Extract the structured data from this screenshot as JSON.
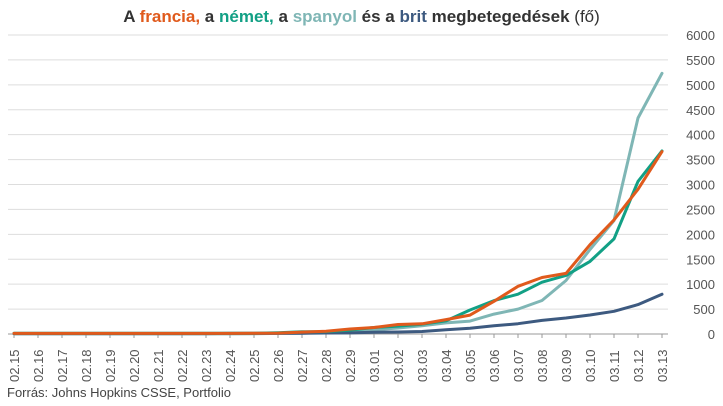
{
  "title": {
    "parts": [
      {
        "text": "A ",
        "color": "#333333",
        "bold": true
      },
      {
        "text": "francia,",
        "color": "#e05a1c",
        "bold": true
      },
      {
        "text": " a ",
        "color": "#333333",
        "bold": true
      },
      {
        "text": "német,",
        "color": "#12a085",
        "bold": true
      },
      {
        "text": " a ",
        "color": "#333333",
        "bold": true
      },
      {
        "text": "spanyol",
        "color": "#7fb6b5",
        "bold": true
      },
      {
        "text": " és a ",
        "color": "#333333",
        "bold": true
      },
      {
        "text": "brit",
        "color": "#3d5a80",
        "bold": true
      },
      {
        "text": " megbetegedések ",
        "color": "#333333",
        "bold": true
      },
      {
        "text": "(fő)",
        "color": "#333333",
        "bold": false
      }
    ]
  },
  "source": "Forrás: Johns Hopkins CSSE, Portfolio",
  "chart_data": {
    "type": "line",
    "grid": true,
    "y_axis_position": "right",
    "ylim": [
      0,
      6000
    ],
    "yticks": [
      0,
      500,
      1000,
      1500,
      2000,
      2500,
      3000,
      3500,
      4000,
      4500,
      5000,
      5500,
      6000
    ],
    "categories": [
      "02.15",
      "02.16",
      "02.17",
      "02.18",
      "02.19",
      "02.20",
      "02.21",
      "02.22",
      "02.23",
      "02.24",
      "02.25",
      "02.26",
      "02.27",
      "02.28",
      "02.29",
      "03.01",
      "03.02",
      "03.03",
      "03.04",
      "03.05",
      "03.06",
      "03.07",
      "03.08",
      "03.09",
      "03.10",
      "03.11",
      "03.12",
      "03.13"
    ],
    "series": [
      {
        "name": "spanyol",
        "color": "#7fb6b5",
        "values": [
          2,
          2,
          2,
          2,
          2,
          2,
          2,
          2,
          2,
          2,
          6,
          13,
          15,
          32,
          45,
          84,
          120,
          165,
          222,
          259,
          400,
          500,
          673,
          1073,
          1695,
          2277,
          4335,
          5232
        ]
      },
      {
        "name": "brit",
        "color": "#3d5a80",
        "values": [
          9,
          9,
          9,
          9,
          9,
          9,
          9,
          9,
          9,
          13,
          13,
          13,
          15,
          20,
          23,
          36,
          40,
          51,
          86,
          116,
          164,
          207,
          273,
          321,
          382,
          456,
          590,
          798
        ]
      },
      {
        "name": "német",
        "color": "#12a085",
        "values": [
          16,
          16,
          16,
          16,
          16,
          16,
          16,
          16,
          16,
          16,
          17,
          27,
          46,
          48,
          79,
          130,
          159,
          196,
          262,
          482,
          670,
          799,
          1040,
          1176,
          1457,
          1908,
          3062,
          3675
        ]
      },
      {
        "name": "francia",
        "color": "#e05a1c",
        "values": [
          12,
          12,
          12,
          12,
          12,
          12,
          12,
          12,
          12,
          12,
          14,
          18,
          38,
          57,
          100,
          130,
          191,
          204,
          288,
          380,
          656,
          957,
          1134,
          1217,
          1792,
          2289,
          2903,
          3661
        ]
      }
    ]
  }
}
